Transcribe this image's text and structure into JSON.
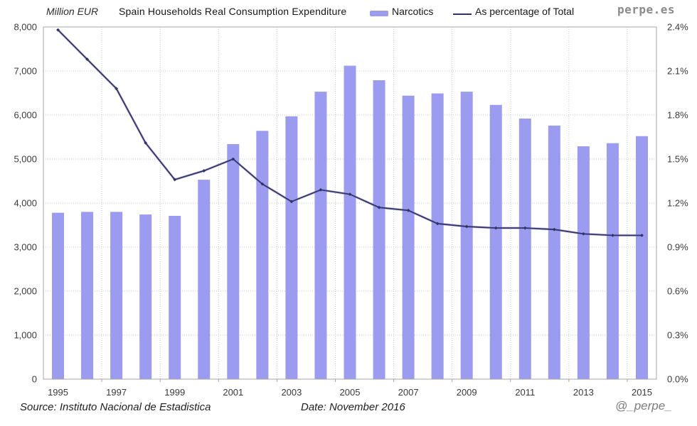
{
  "header": {
    "y_axis_label": "Million EUR",
    "title": "Spain Households Real Consumption Expenditure",
    "brand": "perpe.es"
  },
  "legend": {
    "position": "top",
    "bar_label": "Narcotics",
    "line_label": "As percentage of Total"
  },
  "footer": {
    "source": "Source: Instituto Nacional de Estadistica",
    "date": "Date: November 2016",
    "handle": "@_perpe_"
  },
  "colors": {
    "bar": "#9B9BF0",
    "line": "#32326B",
    "line_glow": "#8F8FC8",
    "grid": "#C8C8C8",
    "border": "#A6A6A6",
    "tick_text": "#3A3A3A"
  },
  "chart_data": {
    "type": "bar+line",
    "title": "Spain Households Real Consumption Expenditure",
    "categories": [
      1995,
      1996,
      1997,
      1998,
      1999,
      2000,
      2001,
      2002,
      2003,
      2004,
      2005,
      2006,
      2007,
      2008,
      2009,
      2010,
      2011,
      2012,
      2013,
      2014,
      2015
    ],
    "series": [
      {
        "name": "Narcotics",
        "type": "bar",
        "axis": "left",
        "unit": "Million EUR",
        "values": [
          3780,
          3800,
          3800,
          3740,
          3710,
          4530,
          5340,
          5640,
          5970,
          6530,
          7120,
          6790,
          6440,
          6490,
          6530,
          6230,
          5920,
          5760,
          5290,
          5360,
          5520
        ]
      },
      {
        "name": "As percentage of Total",
        "type": "line",
        "axis": "right",
        "unit": "%",
        "values": [
          2.38,
          2.18,
          1.98,
          1.61,
          1.36,
          1.42,
          1.5,
          1.33,
          1.21,
          1.29,
          1.26,
          1.17,
          1.15,
          1.06,
          1.04,
          1.03,
          1.03,
          1.02,
          0.99,
          0.98,
          0.98
        ]
      }
    ],
    "left_axis": {
      "label": "Million EUR",
      "min": 0,
      "max": 8000,
      "step": 1000,
      "tick_values": [
        0,
        1000,
        2000,
        3000,
        4000,
        5000,
        6000,
        7000,
        8000
      ],
      "tick_labels": [
        "0",
        "1,000",
        "2,000",
        "3,000",
        "4,000",
        "5,000",
        "6,000",
        "7,000",
        "8,000"
      ]
    },
    "right_axis": {
      "label": "As percentage of Total",
      "min": 0,
      "max": 2.4,
      "step": 0.3,
      "tick_values": [
        0,
        0.3,
        0.6,
        0.9,
        1.2,
        1.5,
        1.8,
        2.1,
        2.4
      ],
      "tick_labels": [
        "0.0%",
        "0.3%",
        "0.6%",
        "0.9%",
        "1.2%",
        "1.5%",
        "1.8%",
        "2.1%",
        "2.4%"
      ]
    },
    "x_tick_labels": [
      "1995",
      "1997",
      "1999",
      "2001",
      "2003",
      "2005",
      "2007",
      "2009",
      "2011",
      "2013",
      "2015"
    ],
    "x_tick_every": 2,
    "grid": "dotted",
    "legend_position": "top"
  }
}
